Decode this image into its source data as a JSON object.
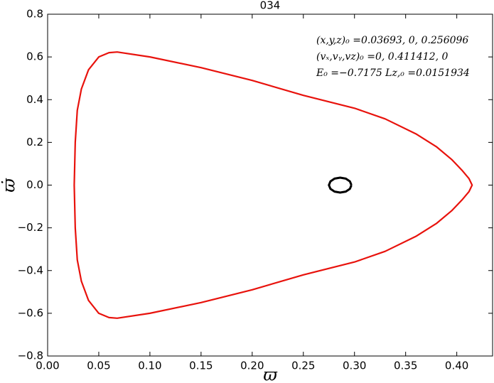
{
  "chart_data": {
    "type": "line",
    "title": "034",
    "xlabel": "ϖ",
    "ylabel": "ϖ̇",
    "annotations": [
      "(x,y,z)₀ =0.03693, 0, 0.256096",
      "(vₓ,vᵧ,vz)₀ =0, 0.411412, 0",
      "E₀ =−0.7175  Lz,₀ =0.0151934"
    ],
    "xlim": [
      0,
      0.435
    ],
    "ylim": [
      -0.8,
      0.8
    ],
    "xticks": [
      {
        "value": 0,
        "label": "0.00"
      },
      {
        "value": 0.05,
        "label": "0.05"
      },
      {
        "value": 0.1,
        "label": "0.10"
      },
      {
        "value": 0.15,
        "label": "0.15"
      },
      {
        "value": 0.2,
        "label": "0.20"
      },
      {
        "value": 0.25,
        "label": "0.25"
      },
      {
        "value": 0.3,
        "label": "0.30"
      },
      {
        "value": 0.35,
        "label": "0.35"
      },
      {
        "value": 0.4,
        "label": "0.40"
      }
    ],
    "yticks": [
      {
        "value": -0.8,
        "label": "−0.8"
      },
      {
        "value": -0.6,
        "label": "−0.6"
      },
      {
        "value": -0.4,
        "label": "−0.4"
      },
      {
        "value": -0.2,
        "label": "−0.2"
      },
      {
        "value": 0,
        "label": "0.0"
      },
      {
        "value": 0.2,
        "label": "0.2"
      },
      {
        "value": 0.4,
        "label": "0.4"
      },
      {
        "value": 0.6,
        "label": "0.6"
      },
      {
        "value": 0.8,
        "label": "0.8"
      }
    ],
    "series": [
      {
        "color": "#e8120c",
        "width": 2.2,
        "x": [
          0.026,
          0.027,
          0.029,
          0.033,
          0.04,
          0.05,
          0.06,
          0.068,
          0.1,
          0.15,
          0.2,
          0.25,
          0.3,
          0.33,
          0.36,
          0.38,
          0.395,
          0.405,
          0.412,
          0.415,
          0.412,
          0.405,
          0.395,
          0.38,
          0.36,
          0.33,
          0.3,
          0.25,
          0.2,
          0.15,
          0.1,
          0.068,
          0.06,
          0.05,
          0.04,
          0.033,
          0.029,
          0.027,
          0.026
        ],
        "values": [
          0,
          0.2,
          0.35,
          0.45,
          0.54,
          0.6,
          0.62,
          0.623,
          0.6,
          0.55,
          0.49,
          0.42,
          0.36,
          0.31,
          0.24,
          0.18,
          0.12,
          0.07,
          0.03,
          0,
          -0.03,
          -0.07,
          -0.12,
          -0.18,
          -0.24,
          -0.31,
          -0.36,
          -0.42,
          -0.49,
          -0.55,
          -0.6,
          -0.623,
          -0.62,
          -0.6,
          -0.54,
          -0.45,
          -0.35,
          -0.2,
          0
        ]
      },
      {
        "color": "#000000",
        "width": 3,
        "x": [
          0.297,
          0.2955,
          0.2915,
          0.286,
          0.2805,
          0.2765,
          0.275,
          0.2765,
          0.2805,
          0.286,
          0.2915,
          0.2955,
          0.297
        ],
        "values": [
          0,
          0.0175,
          0.0303,
          0.035,
          0.0303,
          0.0175,
          0,
          -0.0175,
          -0.0303,
          -0.035,
          -0.0303,
          -0.0175,
          0
        ]
      }
    ]
  }
}
